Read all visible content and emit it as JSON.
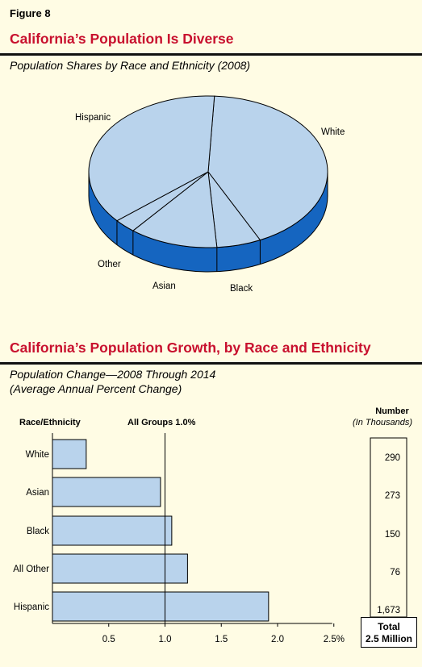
{
  "figure_label": "Figure 8",
  "panel1": {
    "title": "California’s Population Is Diverse",
    "subtitle": "Population Shares by Race and Ethnicity (2008)"
  },
  "panel2": {
    "title": "California’s Population Growth, by Race and Ethnicity",
    "subtitle_line1": "Population Change—2008 Through 2014",
    "subtitle_line2": "(Average Annual Percent Change)",
    "col_race": "Race/Ethnicity",
    "col_all_groups": "All Groups 1.0%",
    "col_number": "Number",
    "col_number_unit": "(In Thousands)",
    "total_line1": "Total",
    "total_line2": "2.5 Million"
  },
  "colors": {
    "title_red": "#c8102e",
    "pie_top": "#b9d3ec",
    "pie_side": "#1565c0",
    "bar_fill": "#b9d3ec",
    "background": "#fffce4"
  },
  "chart_data": [
    {
      "type": "pie",
      "title": "Population Shares by Race and Ethnicity (2008)",
      "style": "3d",
      "categories": [
        "White",
        "Black",
        "Asian",
        "Other",
        "Hispanic"
      ],
      "values": [
        42,
        6,
        12,
        3,
        37
      ],
      "unit": "percent of population (estimated)"
    },
    {
      "type": "bar",
      "orientation": "horizontal",
      "title": "Population Change—2008 Through 2014 (Average Annual Percent Change)",
      "categories": [
        "White",
        "Asian",
        "Black",
        "All Other",
        "Hispanic"
      ],
      "values": [
        0.3,
        0.96,
        1.06,
        1.2,
        1.92
      ],
      "reference_line": {
        "label": "All Groups 1.0%",
        "value": 1.0
      },
      "xlim": [
        0,
        2.5
      ],
      "x_ticks": [
        "0.5",
        "1.0",
        "1.5",
        "2.0",
        "2.5%"
      ],
      "x_tick_values": [
        0.5,
        1.0,
        1.5,
        2.0,
        2.5
      ],
      "numbers_in_thousands": [
        "290",
        "273",
        "150",
        "76",
        "1,673"
      ]
    }
  ]
}
